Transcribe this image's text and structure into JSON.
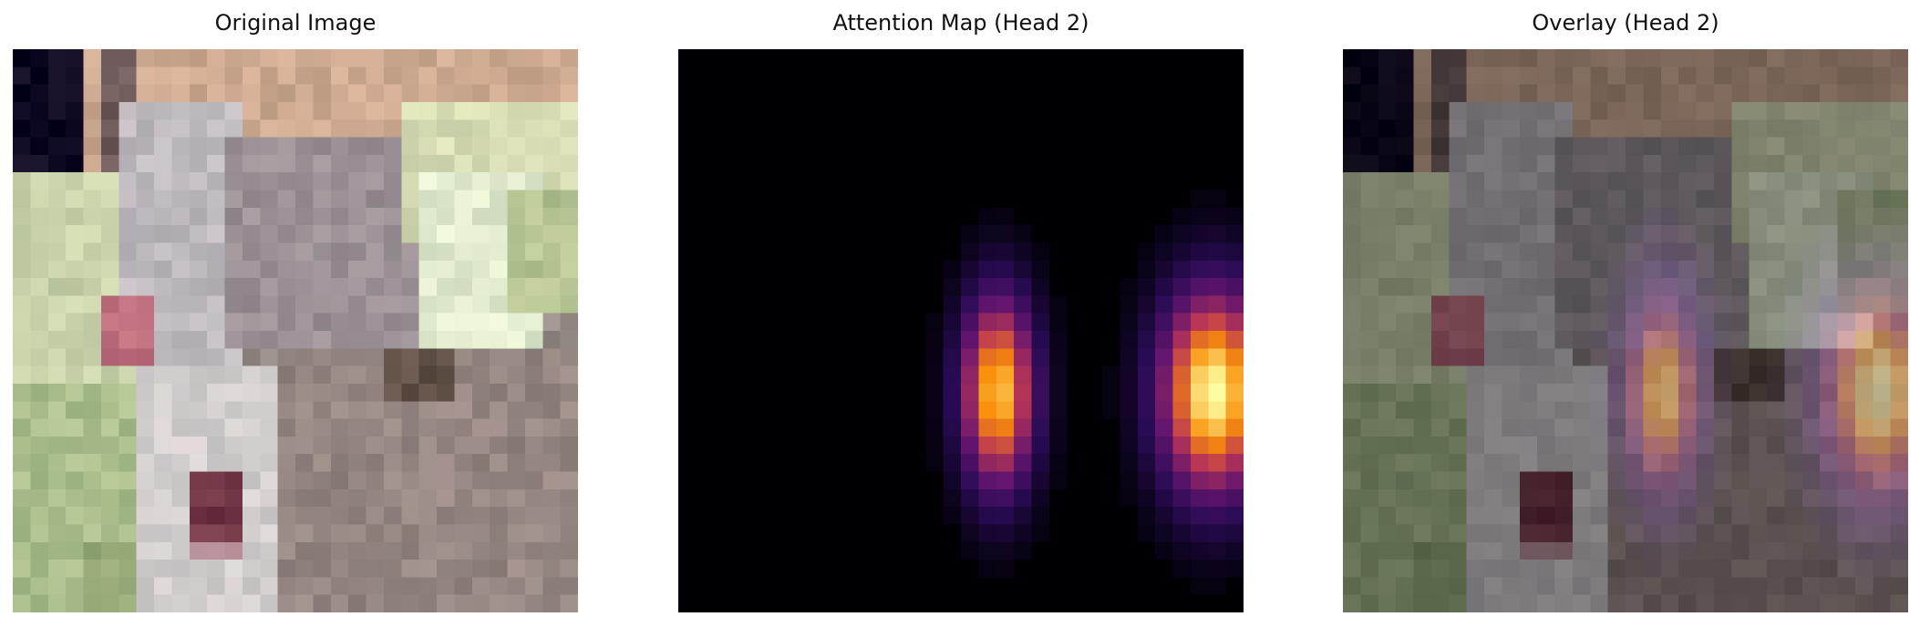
{
  "panels": [
    {
      "title": "Original Image"
    },
    {
      "title": "Attention Map (Head 2)"
    },
    {
      "title": "Overlay (Head 2)"
    }
  ],
  "colors": {
    "background": "#ffffff",
    "title_text": "#111111",
    "attention_colormap": "inferno"
  }
}
